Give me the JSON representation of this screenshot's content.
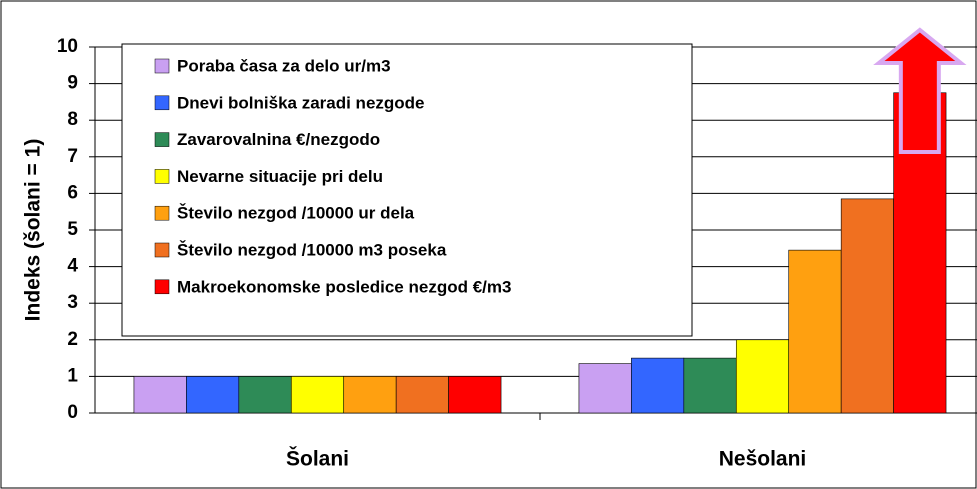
{
  "chart_data": {
    "type": "bar",
    "y_label": "Indeks (šolani = 1)",
    "categories": [
      "Šolani",
      "Nešolani"
    ],
    "series": [
      {
        "name": "Poraba časa za delo ur/m3",
        "color": "#c9a0f2",
        "values": [
          1,
          1.35
        ]
      },
      {
        "name": "Dnevi bolniška zaradi nezgode",
        "color": "#3366ff",
        "values": [
          1,
          1.5
        ]
      },
      {
        "name": "Zavarovalnina €/nezgodo",
        "color": "#2e8b57",
        "values": [
          1,
          1.5
        ]
      },
      {
        "name": "Nevarne situacije pri delu",
        "color": "#ffff00",
        "values": [
          1,
          2
        ]
      },
      {
        "name": "Število nezgod /10000 ur dela",
        "color": "#ffa010",
        "values": [
          1,
          4.45
        ]
      },
      {
        "name": "Število nezgod /10000 m3 poseka",
        "color": "#f07020",
        "values": [
          1,
          5.85
        ]
      },
      {
        "name": "Makroekonomske posledice nezgod €/m3",
        "color": "#ff0000",
        "values": [
          1,
          8.75
        ]
      }
    ],
    "ylim": [
      0,
      10
    ],
    "yticks": [
      0,
      1,
      2,
      3,
      4,
      5,
      6,
      7,
      8,
      9,
      10
    ],
    "grid": true,
    "legend": "upper left"
  }
}
